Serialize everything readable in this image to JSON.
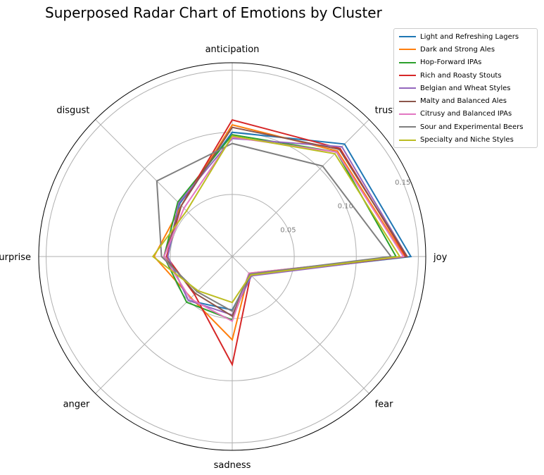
{
  "title": "Superposed Radar Chart of Emotions by Cluster",
  "chart_data": {
    "type": "radar",
    "title": "Superposed Radar Chart of Emotions by Cluster",
    "axes": [
      "joy",
      "trust",
      "anticipation",
      "disgust",
      "surprise",
      "anger",
      "sadness",
      "fear"
    ],
    "r_ticks": [
      0.05,
      0.1,
      0.15
    ],
    "r_tick_labels": [
      "0.05",
      "0.10",
      "0.15"
    ],
    "r_max": 0.156,
    "grid": true,
    "legend_position": "top-right",
    "series": [
      {
        "name": "Light and Refreshing Lagers",
        "color": "#1f77b4",
        "values": [
          0.144,
          0.128,
          0.1,
          0.06,
          0.052,
          0.05,
          0.043,
          0.021
        ]
      },
      {
        "name": "Dark and Strong Ales",
        "color": "#ff7f0e",
        "values": [
          0.139,
          0.12,
          0.106,
          0.058,
          0.063,
          0.047,
          0.067,
          0.019
        ]
      },
      {
        "name": "Hop-Forward IPAs",
        "color": "#2ca02c",
        "values": [
          0.132,
          0.119,
          0.098,
          0.062,
          0.055,
          0.052,
          0.051,
          0.02
        ]
      },
      {
        "name": "Rich and Roasty Stouts",
        "color": "#d62728",
        "values": [
          0.14,
          0.123,
          0.11,
          0.058,
          0.053,
          0.043,
          0.087,
          0.021
        ]
      },
      {
        "name": "Belgian and Wheat Styles",
        "color": "#9467bd",
        "values": [
          0.141,
          0.125,
          0.095,
          0.061,
          0.052,
          0.05,
          0.047,
          0.022
        ]
      },
      {
        "name": "Malty and Balanced Ales",
        "color": "#8c564b",
        "values": [
          0.141,
          0.122,
          0.104,
          0.058,
          0.055,
          0.042,
          0.048,
          0.02
        ]
      },
      {
        "name": "Citrusy and Balanced IPAs",
        "color": "#e377c2",
        "values": [
          0.138,
          0.119,
          0.096,
          0.055,
          0.055,
          0.048,
          0.052,
          0.019
        ]
      },
      {
        "name": "Sour and Experimental Beers",
        "color": "#7f7f7f",
        "values": [
          0.128,
          0.103,
          0.091,
          0.086,
          0.057,
          0.04,
          0.044,
          0.02
        ]
      },
      {
        "name": "Specialty and Niche Styles",
        "color": "#bcbd22",
        "values": [
          0.135,
          0.117,
          0.097,
          0.052,
          0.064,
          0.039,
          0.037,
          0.021
        ]
      }
    ]
  }
}
